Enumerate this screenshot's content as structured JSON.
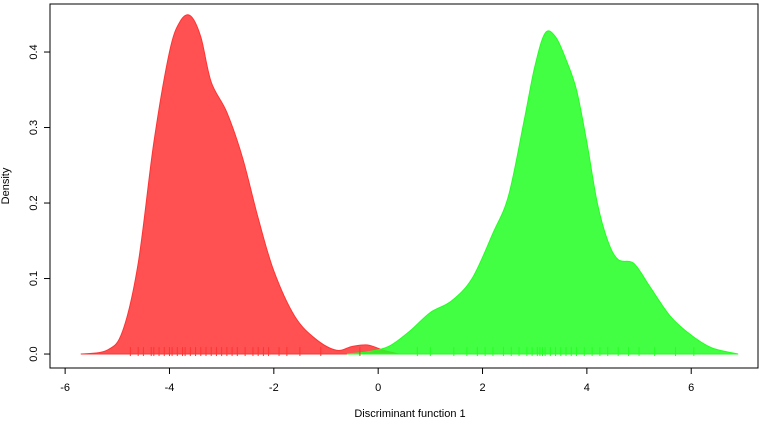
{
  "chart_data": {
    "type": "density",
    "x_label": "Discriminant function 1",
    "y_label": "Density",
    "xlim": [
      -6.29,
      7.28
    ],
    "ylim": [
      -0.0185,
      0.4636
    ],
    "xticks": [
      -6,
      -4,
      -2,
      0,
      2,
      4,
      6
    ],
    "yticks": [
      {
        "value": 0,
        "label": "0.0"
      },
      0.1,
      0.2,
      0.3,
      0.4
    ],
    "series": [
      {
        "color": "#ff3333",
        "x": [
          -5.7,
          -5.2,
          -4.9,
          -4.6,
          -4.3,
          -4.0,
          -3.8,
          -3.6,
          -3.4,
          -3.2,
          -2.9,
          -2.6,
          -2.3,
          -2.0,
          -1.6,
          -1.2,
          -0.8,
          -0.5,
          -0.2,
          0.1,
          0.4
        ],
        "values": [
          0,
          0.005,
          0.03,
          0.12,
          0.28,
          0.4,
          0.44,
          0.448,
          0.42,
          0.36,
          0.32,
          0.26,
          0.18,
          0.11,
          0.05,
          0.02,
          0.005,
          0.01,
          0.012,
          0.005,
          0
        ],
        "rug": [
          -4.75,
          -4.6,
          -4.5,
          -4.35,
          -4.3,
          -4.2,
          -4.1,
          -4.0,
          -3.95,
          -3.85,
          -3.75,
          -3.7,
          -3.6,
          -3.5,
          -3.4,
          -3.3,
          -3.2,
          -3.1,
          -3.0,
          -2.9,
          -2.8,
          -2.7,
          -2.55,
          -2.4,
          -2.3,
          -2.2,
          -2.1,
          -1.9,
          -1.75,
          -1.5,
          -1.1,
          -0.35
        ]
      },
      {
        "color": "#22ff22",
        "x": [
          -0.6,
          -0.2,
          0.2,
          0.6,
          1.0,
          1.4,
          1.8,
          2.2,
          2.5,
          2.8,
          3.0,
          3.2,
          3.4,
          3.6,
          3.8,
          4.0,
          4.2,
          4.4,
          4.6,
          4.9,
          5.2,
          5.6,
          6.0,
          6.4,
          6.9
        ],
        "values": [
          0,
          0.003,
          0.01,
          0.03,
          0.055,
          0.07,
          0.1,
          0.16,
          0.21,
          0.31,
          0.38,
          0.425,
          0.42,
          0.39,
          0.35,
          0.28,
          0.2,
          0.15,
          0.125,
          0.12,
          0.09,
          0.05,
          0.025,
          0.008,
          0
        ],
        "rug": [
          0.75,
          1.0,
          1.45,
          1.7,
          1.9,
          2.05,
          2.2,
          2.4,
          2.55,
          2.7,
          2.85,
          2.95,
          3.05,
          3.1,
          3.15,
          3.2,
          3.3,
          3.4,
          3.5,
          3.6,
          3.7,
          3.8,
          3.95,
          4.1,
          4.25,
          4.4,
          4.6,
          4.8,
          5.0,
          5.3,
          5.7,
          6.05
        ]
      }
    ]
  }
}
